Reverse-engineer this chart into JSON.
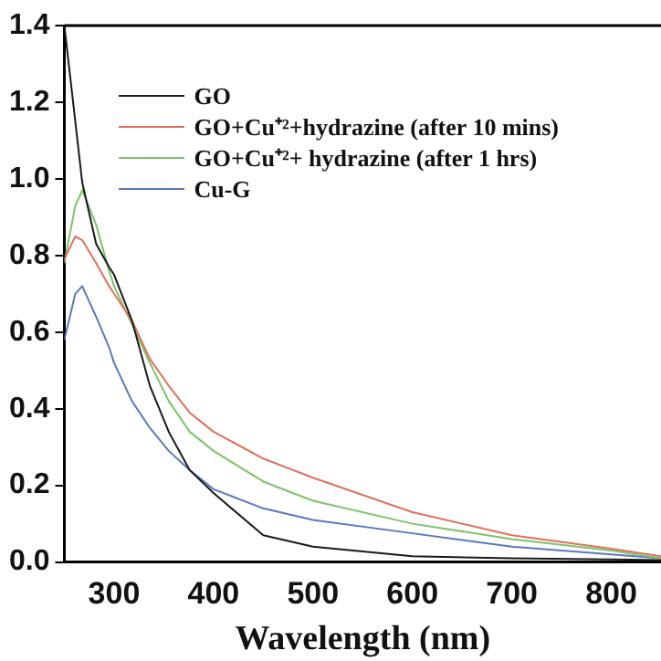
{
  "chart_data": {
    "type": "line",
    "xlabel": "Wavelength (nm)",
    "xlim": [
      250,
      850
    ],
    "xticks": [
      300,
      400,
      500,
      600,
      700,
      800
    ],
    "ylim": [
      0,
      1.4
    ],
    "yticks": [
      {
        "value": 0,
        "label": "0.0"
      },
      0.2,
      0.4,
      0.6,
      0.8,
      {
        "value": 1,
        "label": "1.0"
      },
      1.2,
      1.4
    ],
    "x": [
      250,
      261,
      268,
      282,
      295,
      300,
      318,
      336,
      355,
      376,
      400,
      450,
      500,
      600,
      700,
      800,
      850
    ],
    "series": [
      {
        "name": "GO",
        "color": "#1a1a1a",
        "values": [
          1.4,
          1.15,
          0.99,
          0.83,
          0.77,
          0.75,
          0.63,
          0.46,
          0.34,
          0.24,
          0.18,
          0.07,
          0.04,
          0.015,
          0.01,
          0.007,
          0.005
        ]
      },
      {
        "name": "GO+Cu⁺²+hydrazine (after 10 mins)",
        "color": "#e0705a",
        "values": [
          0.79,
          0.85,
          0.84,
          0.78,
          0.72,
          0.7,
          0.63,
          0.53,
          0.46,
          0.39,
          0.34,
          0.27,
          0.22,
          0.13,
          0.07,
          0.035,
          0.015
        ]
      },
      {
        "name": "GO+Cu⁺²+ hydrazine (after 1 hrs)",
        "color": "#7cc36a",
        "values": [
          0.78,
          0.93,
          0.97,
          0.88,
          0.76,
          0.72,
          0.62,
          0.52,
          0.42,
          0.34,
          0.29,
          0.21,
          0.16,
          0.1,
          0.06,
          0.03,
          0.01
        ]
      },
      {
        "name": "Cu-G",
        "color": "#5a78c0",
        "values": [
          0.58,
          0.7,
          0.72,
          0.64,
          0.56,
          0.52,
          0.42,
          0.35,
          0.29,
          0.24,
          0.19,
          0.14,
          0.11,
          0.075,
          0.04,
          0.02,
          0.01
        ]
      }
    ],
    "legend": "top left",
    "grid": false,
    "marker": "none",
    "line_style": "solid"
  }
}
